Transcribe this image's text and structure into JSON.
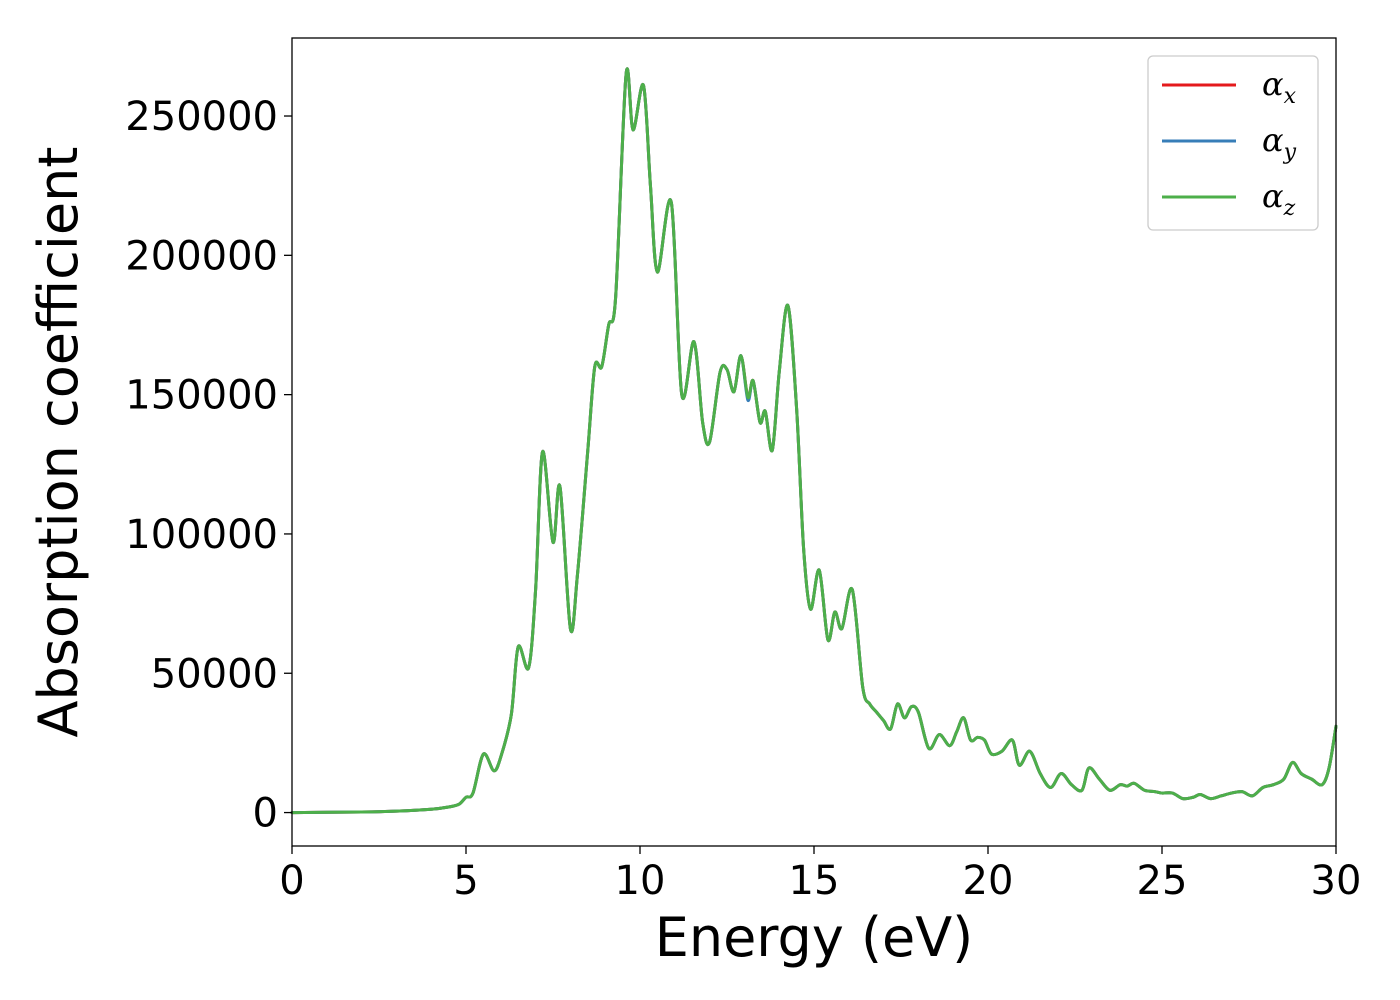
{
  "chart_data": {
    "type": "line",
    "xlabel": "Energy (eV)",
    "ylabel": "Absorption coefficient",
    "xlim": [
      0,
      30
    ],
    "ylim": [
      -12000,
      278000
    ],
    "xticks": [
      0,
      5,
      10,
      15,
      20,
      25,
      30
    ],
    "yticks": [
      0,
      50000,
      100000,
      150000,
      200000,
      250000
    ],
    "grid": false,
    "legend_position": "top-right",
    "series": [
      {
        "name": "α",
        "subscript": "x",
        "color": "#e41a1c",
        "x": [
          0,
          2,
          3,
          4,
          4.5,
          4.8,
          5.0,
          5.2,
          5.5,
          5.8,
          6.0,
          6.3,
          6.5,
          6.8,
          7.0,
          7.2,
          7.5,
          7.7,
          8.0,
          8.2,
          8.5,
          8.7,
          8.9,
          9.1,
          9.3,
          9.6,
          9.8,
          10.1,
          10.3,
          10.5,
          10.9,
          11.2,
          11.55,
          11.8,
          12.0,
          12.3,
          12.5,
          12.7,
          12.9,
          13.1,
          13.25,
          13.45,
          13.6,
          13.8,
          14.0,
          14.25,
          14.5,
          14.7,
          14.9,
          15.15,
          15.4,
          15.6,
          15.8,
          16.1,
          16.4,
          16.6,
          16.8,
          17.0,
          17.2,
          17.4,
          17.6,
          17.8,
          18.0,
          18.3,
          18.6,
          18.9,
          19.1,
          19.3,
          19.5,
          19.7,
          19.9,
          20.1,
          20.4,
          20.7,
          20.9,
          21.2,
          21.5,
          21.8,
          22.1,
          22.4,
          22.7,
          22.9,
          23.2,
          23.5,
          23.8,
          24.0,
          24.2,
          24.5,
          24.8,
          25.0,
          25.3,
          25.6,
          25.9,
          26.1,
          26.4,
          26.7,
          27.0,
          27.3,
          27.6,
          27.9,
          28.2,
          28.5,
          28.75,
          29.0,
          29.3,
          29.6,
          29.8,
          30.0
        ],
        "y": [
          0,
          200,
          500,
          1200,
          2000,
          3000,
          5500,
          7000,
          21000,
          15000,
          20000,
          35000,
          59500,
          52000,
          80000,
          129500,
          97000,
          117000,
          66000,
          85000,
          130000,
          160000,
          160000,
          175000,
          185000,
          265000,
          245000,
          261000,
          225000,
          194000,
          219000,
          150000,
          169000,
          140000,
          133000,
          158000,
          159000,
          151000,
          164000,
          149000,
          155000,
          140000,
          144000,
          130000,
          158000,
          182000,
          145000,
          95000,
          73000,
          87000,
          62000,
          72000,
          66000,
          80000,
          45000,
          39000,
          36000,
          33000,
          30000,
          39000,
          34000,
          38000,
          36000,
          23000,
          28000,
          24000,
          29000,
          34000,
          26000,
          27000,
          26000,
          21000,
          22000,
          26000,
          17000,
          22000,
          14000,
          9000,
          14000,
          10000,
          8000,
          16000,
          12000,
          8000,
          10000,
          9500,
          10500,
          8000,
          7500,
          7000,
          7000,
          5000,
          5500,
          6500,
          5000,
          6000,
          7000,
          7500,
          6000,
          9000,
          10000,
          12000,
          18000,
          14000,
          12000,
          10000,
          16000,
          31000
        ]
      },
      {
        "name": "α",
        "subscript": "y",
        "color": "#377eb8",
        "x": [
          0,
          2,
          3,
          4,
          4.5,
          4.8,
          5.0,
          5.2,
          5.5,
          5.8,
          6.0,
          6.3,
          6.5,
          6.8,
          7.0,
          7.2,
          7.5,
          7.7,
          8.0,
          8.2,
          8.5,
          8.7,
          8.9,
          9.1,
          9.3,
          9.6,
          9.8,
          10.1,
          10.3,
          10.5,
          10.9,
          11.2,
          11.55,
          11.8,
          12.0,
          12.3,
          12.5,
          12.7,
          12.9,
          13.1,
          13.25,
          13.45,
          13.6,
          13.8,
          14.0,
          14.25,
          14.5,
          14.7,
          14.9,
          15.15,
          15.4,
          15.6,
          15.8,
          16.1,
          16.4,
          16.6,
          16.8,
          17.0,
          17.2,
          17.4,
          17.6,
          17.8,
          18.0,
          18.3,
          18.6,
          18.9,
          19.1,
          19.3,
          19.5,
          19.7,
          19.9,
          20.1,
          20.4,
          20.7,
          20.9,
          21.2,
          21.5,
          21.8,
          22.1,
          22.4,
          22.7,
          22.9,
          23.2,
          23.5,
          23.8,
          24.0,
          24.2,
          24.5,
          24.8,
          25.0,
          25.3,
          25.6,
          25.9,
          26.1,
          26.4,
          26.7,
          27.0,
          27.3,
          27.6,
          27.9,
          28.2,
          28.5,
          28.75,
          29.0,
          29.3,
          29.6,
          29.8,
          30.0
        ],
        "y": [
          0,
          200,
          500,
          1200,
          2000,
          3000,
          5500,
          7000,
          21000,
          15000,
          20000,
          35000,
          59500,
          52000,
          80000,
          129500,
          97000,
          117000,
          66000,
          85000,
          130000,
          160000,
          160000,
          175000,
          185000,
          265000,
          245000,
          261000,
          225000,
          194000,
          219000,
          150000,
          169000,
          140000,
          133000,
          158000,
          159000,
          151000,
          164000,
          148000,
          155000,
          140000,
          144000,
          130000,
          158000,
          182000,
          145000,
          95000,
          73000,
          87000,
          62000,
          72000,
          66000,
          80000,
          45000,
          39000,
          36000,
          33000,
          30000,
          39000,
          34000,
          38000,
          36000,
          23000,
          28000,
          24000,
          29000,
          34000,
          26000,
          27000,
          26000,
          21000,
          22000,
          26000,
          17000,
          22000,
          14000,
          9000,
          14000,
          10000,
          8000,
          16000,
          12000,
          8000,
          10000,
          9500,
          10500,
          8000,
          7500,
          7000,
          7000,
          5000,
          5500,
          6500,
          5000,
          6000,
          7000,
          7500,
          6000,
          9000,
          10000,
          12000,
          18000,
          14000,
          12000,
          10000,
          16000,
          31000
        ]
      },
      {
        "name": "α",
        "subscript": "z",
        "color": "#4daf4a",
        "x": [
          0,
          2,
          3,
          4,
          4.5,
          4.8,
          5.0,
          5.2,
          5.5,
          5.8,
          6.0,
          6.3,
          6.5,
          6.8,
          7.0,
          7.2,
          7.5,
          7.7,
          8.0,
          8.2,
          8.5,
          8.7,
          8.9,
          9.1,
          9.3,
          9.6,
          9.8,
          10.1,
          10.3,
          10.5,
          10.9,
          11.2,
          11.55,
          11.8,
          12.0,
          12.3,
          12.5,
          12.7,
          12.9,
          13.1,
          13.25,
          13.45,
          13.6,
          13.8,
          14.0,
          14.25,
          14.5,
          14.7,
          14.9,
          15.15,
          15.4,
          15.6,
          15.8,
          16.1,
          16.4,
          16.6,
          16.8,
          17.0,
          17.2,
          17.4,
          17.6,
          17.8,
          18.0,
          18.3,
          18.6,
          18.9,
          19.1,
          19.3,
          19.5,
          19.7,
          19.9,
          20.1,
          20.4,
          20.7,
          20.9,
          21.2,
          21.5,
          21.8,
          22.1,
          22.4,
          22.7,
          22.9,
          23.2,
          23.5,
          23.8,
          24.0,
          24.2,
          24.5,
          24.8,
          25.0,
          25.3,
          25.6,
          25.9,
          26.1,
          26.4,
          26.7,
          27.0,
          27.3,
          27.6,
          27.9,
          28.2,
          28.5,
          28.75,
          29.0,
          29.3,
          29.6,
          29.8,
          30.0
        ],
        "y": [
          0,
          200,
          500,
          1200,
          2000,
          3000,
          5500,
          7000,
          21000,
          15000,
          20000,
          35000,
          59500,
          52000,
          80000,
          129500,
          97000,
          117000,
          66000,
          85000,
          130000,
          160000,
          160000,
          175000,
          185000,
          265000,
          245000,
          261000,
          225000,
          194000,
          219000,
          150000,
          169000,
          140000,
          133000,
          158000,
          159000,
          151000,
          164000,
          149000,
          155000,
          140000,
          144000,
          130000,
          158000,
          182000,
          145000,
          95000,
          73000,
          87000,
          62000,
          72000,
          66000,
          80000,
          45000,
          39000,
          36000,
          33000,
          30000,
          39000,
          34000,
          38000,
          36000,
          23000,
          28000,
          24000,
          29000,
          34000,
          26000,
          27000,
          26000,
          21000,
          22000,
          26000,
          17000,
          22000,
          14000,
          9000,
          14000,
          10000,
          8000,
          16000,
          12000,
          8000,
          10000,
          9500,
          10500,
          8000,
          7500,
          7000,
          7000,
          5000,
          5500,
          6500,
          5000,
          6000,
          7000,
          7500,
          6000,
          9000,
          10000,
          12000,
          18000,
          14000,
          12000,
          10000,
          16000,
          31000
        ]
      }
    ]
  }
}
